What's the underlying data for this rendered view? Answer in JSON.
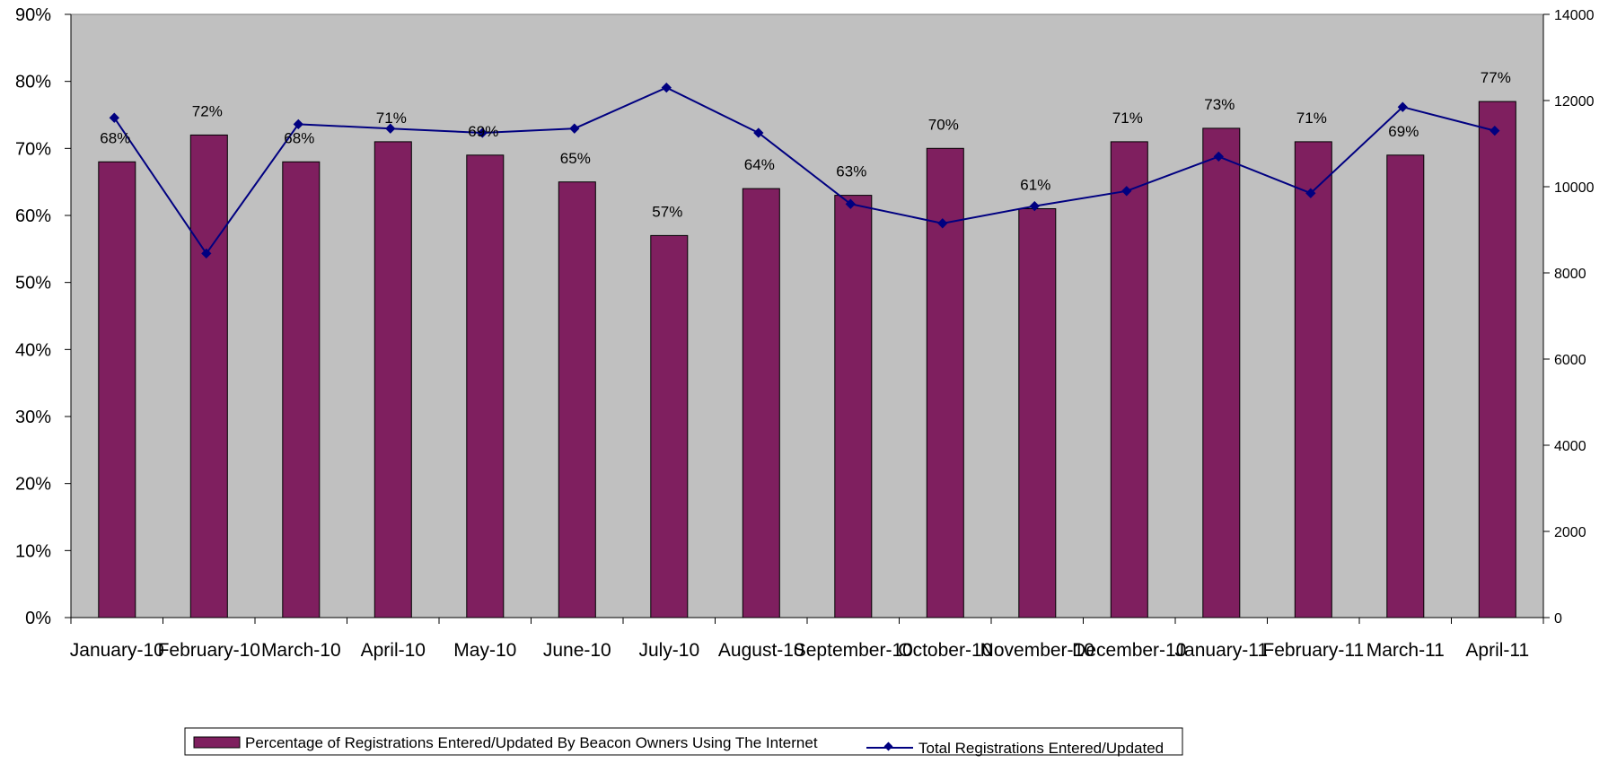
{
  "chart_data": {
    "type": "bar",
    "categories": [
      "January-10",
      "February-10",
      "March-10",
      "April-10",
      "May-10",
      "June-10",
      "July-10",
      "August-10",
      "September-10",
      "October-10",
      "November-10",
      "December-10",
      "January-11",
      "February-11",
      "March-11",
      "April-11"
    ],
    "series": [
      {
        "name": "Percentage of Registrations Entered/Updated By Beacon Owners Using The Internet",
        "type": "bar",
        "axis": "left",
        "values": [
          68,
          72,
          68,
          71,
          69,
          65,
          57,
          64,
          63,
          70,
          61,
          71,
          73,
          71,
          69,
          77
        ],
        "data_labels": [
          "68%",
          "72%",
          "68%",
          "71%",
          "69%",
          "65%",
          "57%",
          "64%",
          "63%",
          "70%",
          "61%",
          "71%",
          "73%",
          "71%",
          "69%",
          "77%"
        ],
        "color": "#7f1f5f"
      },
      {
        "name": "Total Registrations Entered/Updated",
        "type": "line",
        "axis": "right",
        "values": [
          11600,
          8450,
          11450,
          11350,
          11250,
          11350,
          12300,
          11250,
          9600,
          9150,
          9550,
          9900,
          10700,
          9850,
          11850,
          11300
        ],
        "color": "#000080"
      }
    ],
    "y_left": {
      "ylim": [
        0,
        90
      ],
      "ticks": [
        0,
        10,
        20,
        30,
        40,
        50,
        60,
        70,
        80,
        90
      ],
      "tick_labels": [
        "0%",
        "10%",
        "20%",
        "30%",
        "40%",
        "50%",
        "60%",
        "70%",
        "80%",
        "90%"
      ]
    },
    "y_right": {
      "ylim": [
        0,
        14000
      ],
      "ticks": [
        0,
        2000,
        4000,
        6000,
        8000,
        10000,
        12000,
        14000
      ],
      "tick_labels": [
        "0",
        "2000",
        "4000",
        "6000",
        "8000",
        "10000",
        "12000",
        "14000"
      ]
    },
    "title": "",
    "xlabel": "",
    "ylabel": "",
    "grid": false,
    "plot_background": "#c0c0c0",
    "legend_position": "bottom"
  }
}
